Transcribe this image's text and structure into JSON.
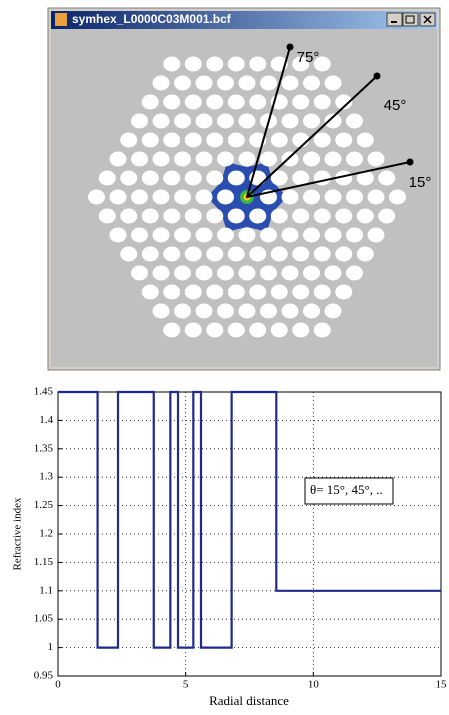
{
  "window": {
    "title": "symhex_L0000C03M001.bcf",
    "angle_labels": [
      "75°",
      "45°",
      "15°"
    ]
  },
  "chart_data": {
    "type": "line",
    "xlabel": "Radial distance",
    "ylabel": "Refractive index",
    "annotation": "θ= 15°, 45°, ..",
    "x": [
      0,
      1.55,
      1.55,
      2.35,
      2.35,
      3.75,
      3.75,
      4.4,
      4.4,
      4.7,
      4.7,
      5.3,
      5.3,
      5.6,
      5.6,
      6.8,
      6.8,
      8.55,
      8.55,
      15
    ],
    "values": [
      1.45,
      1.45,
      1,
      1,
      1.45,
      1.45,
      1,
      1,
      1.45,
      1.45,
      1,
      1,
      1.45,
      1.45,
      1,
      1,
      1.45,
      1.45,
      1.1,
      1.1
    ],
    "color": "#1f2a8c",
    "xlim": [
      0,
      15
    ],
    "xticks": [
      0,
      5,
      10,
      15
    ],
    "ylim": [
      0.95,
      1.45
    ],
    "yticks": [
      0.95,
      1,
      1.05,
      1.1,
      1.15,
      1.2,
      1.25,
      1.3,
      1.35,
      1.4,
      1.45
    ],
    "grid": true
  }
}
